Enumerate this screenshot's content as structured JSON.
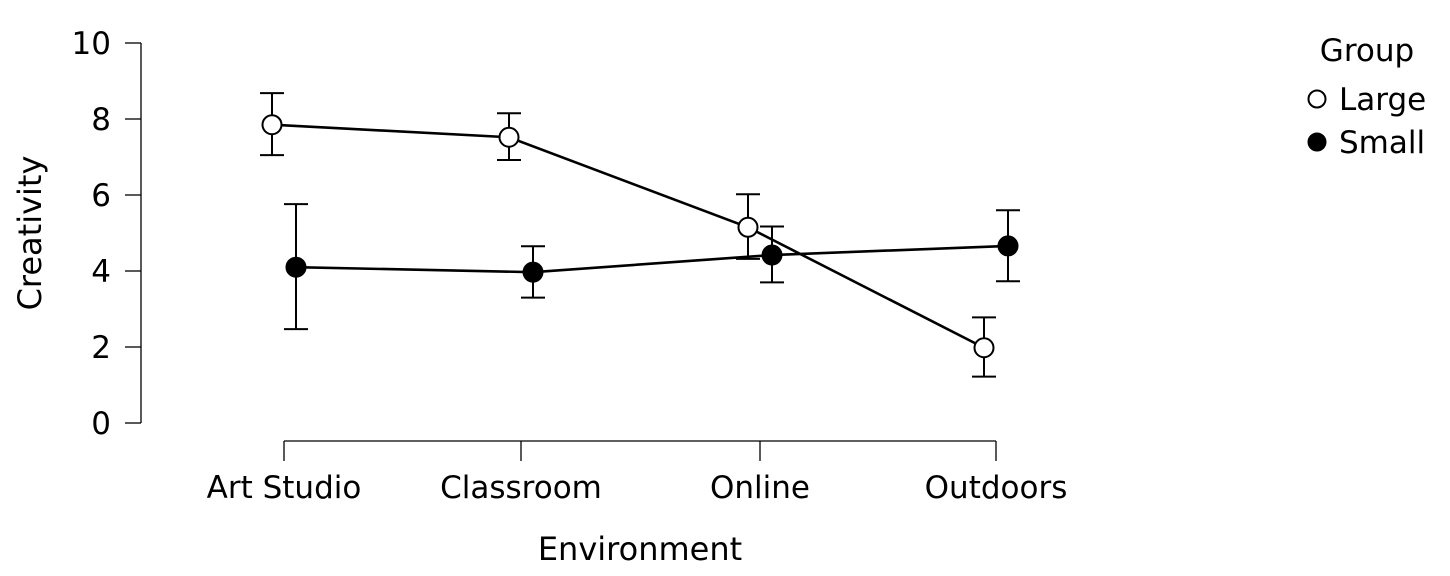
{
  "chart_data": {
    "type": "line",
    "xlabel": "Environment",
    "ylabel": "Creativity",
    "categories": [
      "Art Studio",
      "Classroom",
      "Online",
      "Outdoors"
    ],
    "ylim": [
      0,
      10
    ],
    "yticks": [
      "0",
      "2",
      "4",
      "6",
      "8",
      "10"
    ],
    "grid": false,
    "legend": {
      "title": "Group",
      "position": "top-right"
    },
    "series": [
      {
        "name": "Large",
        "marker": "open-circle",
        "fill": "#ffffff",
        "values": [
          7.85,
          7.52,
          5.15,
          1.98
        ],
        "err_low": [
          7.05,
          6.92,
          4.32,
          1.22
        ],
        "err_high": [
          8.68,
          8.15,
          6.02,
          2.78
        ]
      },
      {
        "name": "Small",
        "marker": "filled-circle",
        "fill": "#000000",
        "values": [
          4.1,
          3.97,
          4.42,
          4.66
        ],
        "err_low": [
          2.47,
          3.3,
          3.7,
          3.73
        ],
        "err_high": [
          5.76,
          4.65,
          5.17,
          5.6
        ]
      }
    ]
  }
}
